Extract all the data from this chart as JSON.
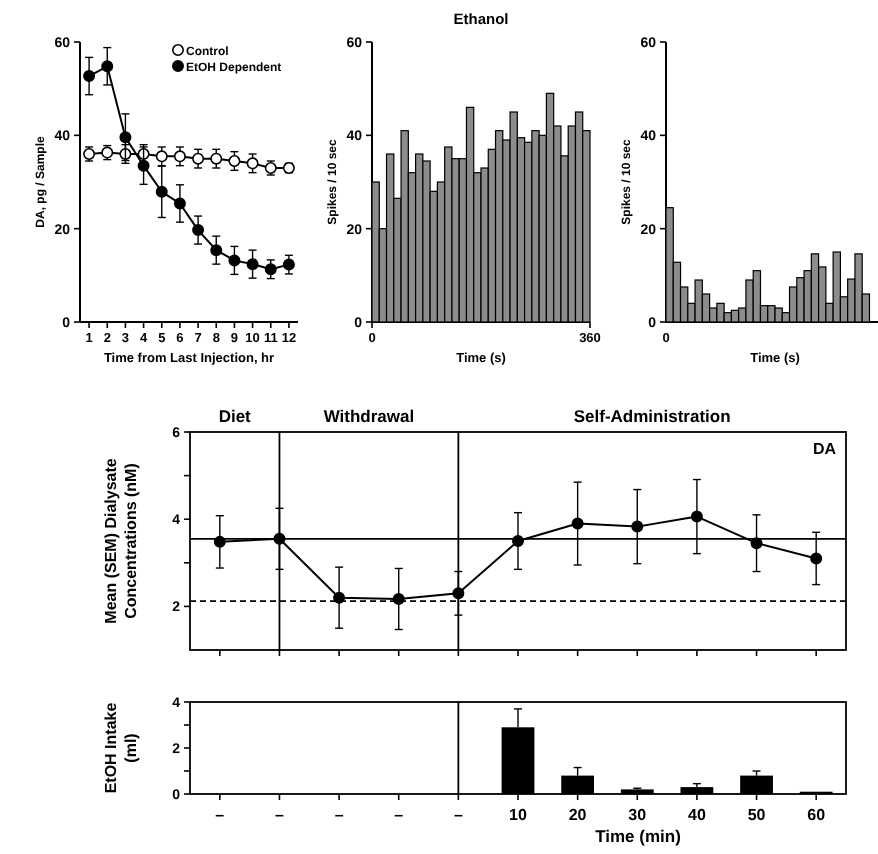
{
  "chart_data": [
    {
      "type": "line",
      "xlabel": "Time from Last Injection, hr",
      "ylabel": "DA, pg / Sample",
      "x": [
        1,
        2,
        3,
        4,
        5,
        6,
        7,
        8,
        9,
        10,
        11,
        12
      ],
      "xlim": [
        0.5,
        12.5
      ],
      "xticks": [
        1,
        2,
        3,
        4,
        5,
        6,
        7,
        8,
        9,
        10,
        11,
        12
      ],
      "ylim": [
        0,
        60
      ],
      "yticks": [
        0,
        20,
        40,
        60
      ],
      "marker": "circle",
      "legend": "top right",
      "series": [
        {
          "name": "Control",
          "color": "#ffffff",
          "values": [
            36,
            36.3,
            36,
            36,
            35.5,
            35.5,
            35,
            35,
            34.5,
            34,
            33,
            33
          ],
          "errors": [
            1.5,
            1.5,
            2,
            2,
            2,
            2,
            2,
            2,
            2,
            2,
            1.5,
            1
          ]
        },
        {
          "name": "EtOH Dependent",
          "color": "#000000",
          "values": [
            52.7,
            54.8,
            39.6,
            33.5,
            27.9,
            25.4,
            19.7,
            15.4,
            13.2,
            12.4,
            11.3,
            12.3
          ],
          "errors": [
            4,
            4,
            5,
            4,
            5.5,
            4,
            3,
            3,
            3,
            3,
            2,
            2
          ]
        }
      ]
    },
    {
      "type": "histogram",
      "title": "Ethanol",
      "xlabel": "Time (s)",
      "ylabel": "Spikes / 10 sec",
      "color": "#8c8c8c",
      "xlim": [
        0,
        360
      ],
      "xticks": [
        0,
        360
      ],
      "ylim": [
        0,
        60
      ],
      "yticks": [
        0,
        20,
        40,
        60
      ],
      "bins": [
        0,
        12,
        24,
        36,
        48,
        60,
        72,
        84,
        96,
        108,
        120,
        132,
        144,
        156,
        168,
        180,
        192,
        204,
        216,
        228,
        240,
        252,
        264,
        276,
        288,
        300,
        312,
        324,
        336,
        348,
        360
      ],
      "values": [
        30,
        20,
        36,
        26.5,
        41,
        32,
        36,
        34.5,
        28,
        30,
        37.5,
        35,
        35,
        46,
        32,
        33,
        37,
        41,
        39,
        45,
        39.5,
        38.5,
        41,
        40,
        49,
        42,
        35.6,
        42,
        45,
        41
      ]
    },
    {
      "type": "bar",
      "xlabel": "Time (s)",
      "ylabel": "Spikes / 10 sec",
      "color": "#8c8c8c",
      "ylim": [
        0,
        60
      ],
      "yticks": [
        0,
        20,
        40,
        60
      ],
      "annotations": [
        "0"
      ],
      "categories": [
        null,
        null,
        null,
        null,
        null,
        null,
        null,
        null,
        null,
        null,
        null,
        null,
        null,
        null,
        null,
        null,
        null,
        null,
        null,
        null,
        null,
        null,
        null,
        null,
        null,
        null,
        null,
        null,
        null,
        null
      ],
      "values": [
        24.5,
        12.8,
        7.5,
        4,
        9,
        6,
        3,
        4,
        2,
        2.5,
        3,
        9,
        11,
        3.5,
        3.5,
        3,
        2,
        7.5,
        9.5,
        11,
        14.6,
        11.8,
        4,
        15,
        5.4,
        9.2,
        14.6,
        6,
        null,
        null
      ]
    },
    {
      "type": "line",
      "title": "DA",
      "ylabel": "Mean (SEM) Dialysate\nConcentrations (nM)",
      "categories": [
        null,
        null,
        null,
        null,
        null,
        null,
        null,
        null,
        null,
        null,
        null
      ],
      "tick_labels": "y",
      "ylim": [
        1,
        6
      ],
      "yticks": [
        2,
        {
          "value": 3,
          "label": null
        },
        4,
        {
          "value": 5,
          "label": null
        },
        6
      ],
      "marker": "circle",
      "series": [
        {
          "color": "#000000",
          "values": [
            3.48,
            3.55,
            2.2,
            2.17,
            2.3,
            3.5,
            3.9,
            3.83,
            4.06,
            3.45,
            3.1
          ],
          "errors": [
            0.6,
            0.7,
            0.7,
            0.7,
            0.5,
            0.65,
            0.95,
            0.85,
            0.85,
            0.65,
            0.6
          ]
        }
      ],
      "ref_lines": [
        {
          "axis": "y",
          "value": 3.55,
          "label": null
        },
        {
          "axis": "y",
          "value": 2.12,
          "label": null,
          "line_style": "dashed"
        }
      ],
      "annotations": [
        "Diet",
        "Withdrawal",
        "Self-Administration"
      ]
    },
    {
      "type": "bar",
      "xlabel": "Time (min)",
      "ylabel": "EtOH Intake\n(ml)",
      "categories": [
        "–",
        "–",
        "–",
        "–",
        "–",
        "10",
        "20",
        "30",
        "40",
        "50",
        "60"
      ],
      "ylim": [
        0,
        4
      ],
      "yticks": [
        0,
        {
          "value": 1,
          "label": null
        },
        2,
        {
          "value": 3,
          "label": null
        },
        4
      ],
      "color": "#000000",
      "values": [
        null,
        null,
        null,
        null,
        null,
        2.9,
        0.8,
        0.2,
        0.3,
        0.8,
        0.1
      ],
      "errors": [
        null,
        null,
        null,
        null,
        null,
        0.8,
        0.35,
        0.05,
        0.15,
        0.2,
        null
      ]
    }
  ]
}
